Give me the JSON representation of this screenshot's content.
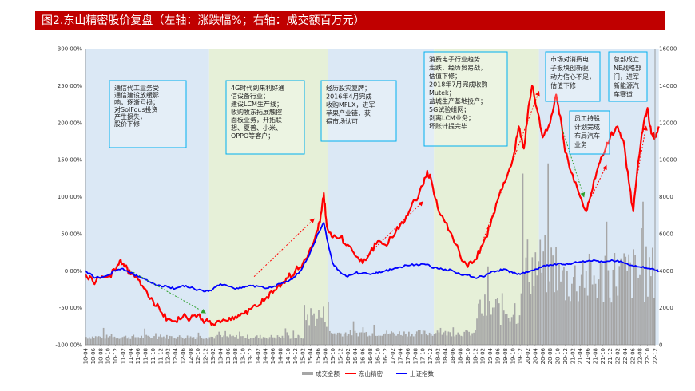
{
  "title": "图2.东山精密股价复盘（左轴：涨跌幅%；右轴：成交额百万元）",
  "chart_data": {
    "type": "line",
    "left_axis": {
      "min": -100,
      "max": 300,
      "ticks": [
        "-100.00%",
        "-50.00%",
        "0.00%",
        "50.00%",
        "100.00%",
        "150.00%",
        "200.00%",
        "250.00%",
        "300.00%"
      ]
    },
    "right_axis": {
      "min": 0,
      "max": 16000,
      "ticks": [
        "0",
        "2000",
        "4000",
        "6000",
        "8000",
        "10000",
        "12000",
        "14000",
        "16000"
      ]
    },
    "x_labels": [
      "10-04",
      "10-06",
      "10-08",
      "10-10",
      "10-12",
      "11-02",
      "11-04",
      "11-06",
      "11-08",
      "11-10",
      "11-12",
      "12-02",
      "12-04",
      "12-06",
      "12-08",
      "12-10",
      "12-12",
      "13-02",
      "13-04",
      "13-06",
      "13-08",
      "13-10",
      "13-12",
      "14-02",
      "14-04",
      "14-06",
      "14-08",
      "14-10",
      "14-12",
      "15-02",
      "15-04",
      "15-06",
      "15-08",
      "15-10",
      "15-12",
      "16-02",
      "16-04",
      "16-06",
      "16-08",
      "16-10",
      "16-12",
      "17-02",
      "17-04",
      "17-06",
      "17-08",
      "17-10",
      "17-12",
      "18-02",
      "18-04",
      "18-06",
      "18-08",
      "18-10",
      "18-12",
      "19-02",
      "19-04",
      "19-06",
      "19-08",
      "19-10",
      "19-12",
      "20-02",
      "20-04",
      "20-06",
      "20-08",
      "20-10",
      "20-12",
      "21-02",
      "21-04",
      "21-06",
      "21-08",
      "21-10",
      "21-12",
      "22-02",
      "22-04",
      "22-06",
      "22-08",
      "22-10",
      "22-12"
    ],
    "periods": [
      {
        "from": 0,
        "to": 16.5,
        "color": "#dbe8f5"
      },
      {
        "from": 16.5,
        "to": 32.3,
        "color": "#e6f0d8"
      },
      {
        "from": 32.3,
        "to": 46.5,
        "color": "#dbe8f5"
      },
      {
        "from": 46.5,
        "to": 60.5,
        "color": "#e6f0d8"
      },
      {
        "from": 60.5,
        "to": 76.5,
        "color": "#dbe8f5"
      }
    ],
    "series": [
      {
        "name": "成交金额",
        "color": "#a6a6a6",
        "type": "bar"
      },
      {
        "name": "东山精密",
        "color": "#ff0000",
        "type": "line",
        "points": [
          [
            0,
            -5
          ],
          [
            1,
            -15
          ],
          [
            2,
            -10
          ],
          [
            3,
            -8
          ],
          [
            4,
            0
          ],
          [
            4.7,
            15
          ],
          [
            5.3,
            5
          ],
          [
            6,
            -5
          ],
          [
            7,
            -12
          ],
          [
            8,
            -25
          ],
          [
            9,
            -40
          ],
          [
            10,
            -55
          ],
          [
            11,
            -65
          ],
          [
            12,
            -68
          ],
          [
            13,
            -62
          ],
          [
            14,
            -65
          ],
          [
            15,
            -60
          ],
          [
            16,
            -68
          ],
          [
            17,
            -72
          ],
          [
            18,
            -70
          ],
          [
            19,
            -68
          ],
          [
            20,
            -62
          ],
          [
            21,
            -58
          ],
          [
            22,
            -52
          ],
          [
            23,
            -48
          ],
          [
            24,
            -38
          ],
          [
            25,
            -30
          ],
          [
            26,
            -22
          ],
          [
            27,
            -10
          ],
          [
            28,
            0
          ],
          [
            29,
            10
          ],
          [
            30,
            30
          ],
          [
            31,
            55
          ],
          [
            31.5,
            80
          ],
          [
            31.8,
            105
          ],
          [
            32.2,
            60
          ],
          [
            33,
            45
          ],
          [
            34,
            45
          ],
          [
            35,
            35
          ],
          [
            36,
            20
          ],
          [
            37,
            10
          ],
          [
            38,
            25
          ],
          [
            39,
            40
          ],
          [
            40,
            35
          ],
          [
            41,
            45
          ],
          [
            42,
            62
          ],
          [
            43,
            75
          ],
          [
            44,
            95
          ],
          [
            45,
            115
          ],
          [
            45.6,
            135
          ],
          [
            46.2,
            120
          ],
          [
            47,
            85
          ],
          [
            48,
            65
          ],
          [
            49,
            45
          ],
          [
            50,
            20
          ],
          [
            51,
            5
          ],
          [
            52,
            15
          ],
          [
            53,
            35
          ],
          [
            54,
            60
          ],
          [
            55,
            95
          ],
          [
            56,
            120
          ],
          [
            57,
            150
          ],
          [
            57.8,
            195
          ],
          [
            58.5,
            165
          ],
          [
            59,
            210
          ],
          [
            59.6,
            250
          ],
          [
            60.2,
            220
          ],
          [
            61,
            180
          ],
          [
            62,
            200
          ],
          [
            62.8,
            238
          ],
          [
            63.5,
            200
          ],
          [
            64,
            160
          ],
          [
            65,
            130
          ],
          [
            66,
            100
          ],
          [
            66.8,
            80
          ],
          [
            67.5,
            105
          ],
          [
            68.4,
            140
          ],
          [
            69,
            155
          ],
          [
            70,
            180
          ],
          [
            71,
            195
          ],
          [
            71.8,
            175
          ],
          [
            72.5,
            120
          ],
          [
            73.1,
            80
          ],
          [
            73.8,
            150
          ],
          [
            74.5,
            200
          ],
          [
            75,
            220
          ],
          [
            75.5,
            185
          ],
          [
            76,
            180
          ],
          [
            76.5,
            195
          ]
        ]
      },
      {
        "name": "上证指数",
        "color": "#0000ff",
        "type": "line",
        "points": [
          [
            0,
            0
          ],
          [
            1,
            -8
          ],
          [
            2,
            -10
          ],
          [
            3,
            -6
          ],
          [
            4,
            0
          ],
          [
            5,
            3
          ],
          [
            6,
            -3
          ],
          [
            7,
            -8
          ],
          [
            8,
            -12
          ],
          [
            9,
            -17
          ],
          [
            10,
            -20
          ],
          [
            11,
            -22
          ],
          [
            12,
            -24
          ],
          [
            13,
            -20
          ],
          [
            14,
            -23
          ],
          [
            15,
            -26
          ],
          [
            16,
            -28
          ],
          [
            17,
            -25
          ],
          [
            18,
            -18
          ],
          [
            19,
            -21
          ],
          [
            20,
            -25
          ],
          [
            21,
            -22
          ],
          [
            22,
            -20
          ],
          [
            23,
            -21
          ],
          [
            24,
            -24
          ],
          [
            25,
            -22
          ],
          [
            26,
            -18
          ],
          [
            27,
            -15
          ],
          [
            28,
            -8
          ],
          [
            29,
            5
          ],
          [
            30,
            25
          ],
          [
            31,
            50
          ],
          [
            31.8,
            65
          ],
          [
            32.5,
            30
          ],
          [
            33,
            10
          ],
          [
            34,
            -2
          ],
          [
            35,
            -8
          ],
          [
            36,
            -3
          ],
          [
            37,
            -3
          ],
          [
            38,
            -5
          ],
          [
            39,
            -3
          ],
          [
            40,
            0
          ],
          [
            41,
            2
          ],
          [
            42,
            5
          ],
          [
            43,
            7
          ],
          [
            44,
            8
          ],
          [
            45,
            9
          ],
          [
            46,
            6
          ],
          [
            47,
            3
          ],
          [
            48,
            2
          ],
          [
            49,
            0
          ],
          [
            50,
            -5
          ],
          [
            51,
            -6
          ],
          [
            52,
            -10
          ],
          [
            53,
            -8
          ],
          [
            54,
            -3
          ],
          [
            55,
            0
          ],
          [
            56,
            2
          ],
          [
            57,
            -3
          ],
          [
            58,
            -5
          ],
          [
            59,
            -2
          ],
          [
            60,
            2
          ],
          [
            61,
            6
          ],
          [
            62,
            8
          ],
          [
            63,
            9
          ],
          [
            64,
            8
          ],
          [
            65,
            10
          ],
          [
            66,
            12
          ],
          [
            67,
            13
          ],
          [
            68,
            14
          ],
          [
            69,
            12
          ],
          [
            70,
            13
          ],
          [
            71,
            14
          ],
          [
            72,
            10
          ],
          [
            73,
            7
          ],
          [
            74,
            5
          ],
          [
            75,
            3
          ],
          [
            76,
            1
          ],
          [
            76.5,
            0
          ]
        ]
      }
    ],
    "annotations": [
      {
        "lines": [
          "通信代工业务受",
          "通信建设放缓影",
          "响，逐渐亏损；",
          "对SolFous投资",
          "产生损失，",
          "股价下修"
        ],
        "box": "#00b0f0"
      },
      {
        "lines": [
          "4G时代到来利好通",
          "信设备行业；",
          "建设LCM生产线；",
          "收购牧东拓展触控",
          "面板业务，开拓联",
          "想、夏普、小米、",
          "OPPO等客户；"
        ],
        "box": "#00b0f0"
      },
      {
        "lines": [
          "经历股灾复牌；",
          "2016年4月完成",
          "收购MFLX，进军",
          "苹果产业链，获",
          "得市场认可"
        ],
        "box": "#00b0f0"
      },
      {
        "lines": [
          "消费电子行业趋势",
          "走跌，经历贸易战，",
          "估值下修；",
          "2018年7月完成收购",
          "Mutek；",
          "盐城生产基地投产；",
          "5G试验组网；",
          "剥离LCM业务；",
          "坏账计提完毕"
        ],
        "box": "#00b0f0"
      },
      {
        "lines": [
          "市场对消费电",
          "子板块创新驱",
          "动力信心不足，",
          "估值下修"
        ],
        "box": "#00b0f0"
      },
      {
        "lines": [
          "员工持股",
          "计划完成",
          "布局汽车",
          "业务"
        ],
        "box": "#00b0f0"
      },
      {
        "lines": [
          "总部成立",
          "NE战略部",
          "门，进军",
          "新能源汽",
          "车赛道"
        ],
        "box": "#00b0f0"
      }
    ]
  }
}
